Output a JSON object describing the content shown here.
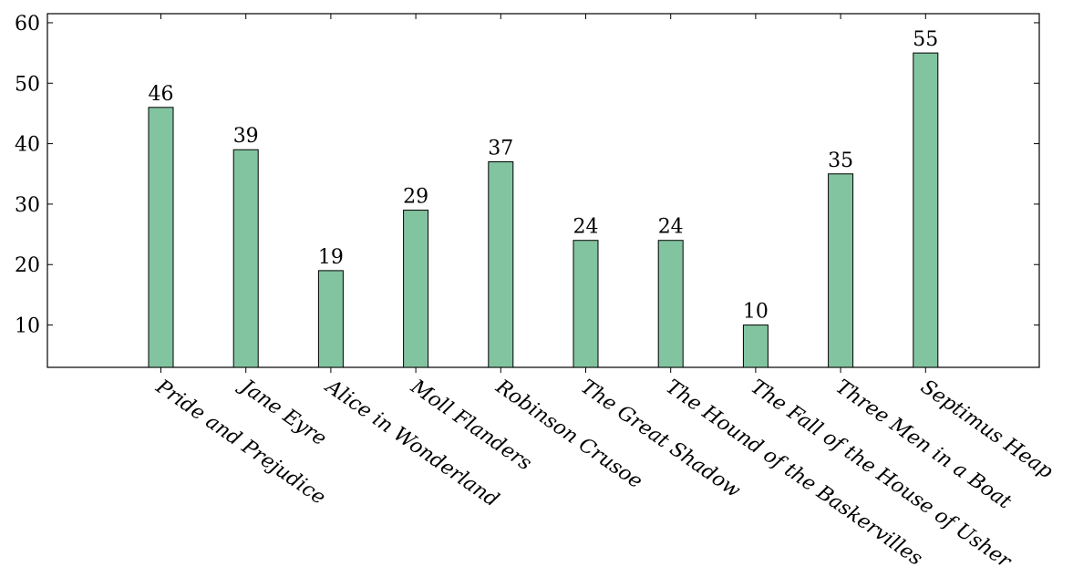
{
  "chart_data": {
    "type": "bar",
    "title": "",
    "xlabel": "",
    "ylabel": "",
    "categories": [
      "Pride and Prejudice",
      "Jane Eyre",
      "Alice in Wonderland",
      "Moll Flanders",
      "Robinson Crusoe",
      "The Great Shadow",
      "The Hound of the Baskervilles",
      "The Fall of the House of Usher",
      "Three Men in a Boat",
      "Septimus Heap"
    ],
    "values": [
      46,
      39,
      19,
      29,
      37,
      24,
      24,
      10,
      35,
      55
    ],
    "ylim": [
      3,
      61.5
    ],
    "yticks": [
      10,
      20,
      30,
      40,
      50,
      60
    ],
    "show_data_labels": true,
    "grid": false,
    "bar_color": "#82c4a0",
    "bar_edge_color": "#000000"
  }
}
